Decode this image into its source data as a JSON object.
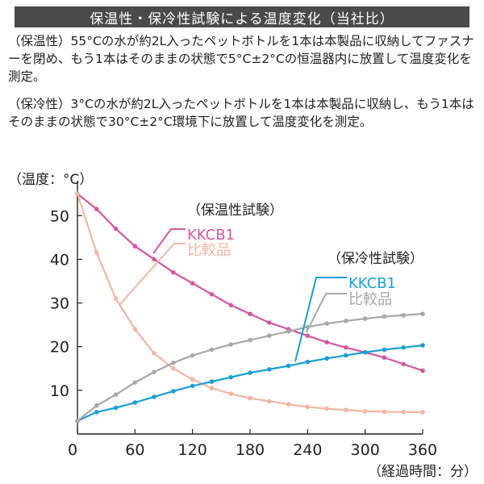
{
  "header": {
    "title": "保温性・保冷性試験による温度変化（当社比）"
  },
  "descriptions": [
    "（保温性）55°Cの水が約2L入ったペットボトルを1本は本製品に収納してファスナーを閉め、もう1本はそのままの状態で5°C±2°Cの恒温器内に放置して温度変化を測定。",
    "（保冷性）3°Cの水が約2L入ったペットボトルを1本は本製品に収納し、もう1本はそのままの状態で30°C±2°C環境下に放置して温度変化を測定。"
  ],
  "colors": {
    "kkcb1_warm": "#d4589e",
    "compare_warm": "#f0b7a3",
    "kkcb1_cold": "#1a9fd6",
    "compare_cold": "#a8a8a8",
    "title_bg": "#4a4a4a"
  },
  "chart_data": {
    "type": "line",
    "ylabel": "（温度：°C）",
    "xlabel": "（経過時間：分）",
    "xlim": [
      0,
      360
    ],
    "ylim": [
      0,
      58
    ],
    "xticks": [
      0,
      60,
      120,
      180,
      240,
      300,
      360
    ],
    "yticks": [
      10,
      20,
      30,
      40,
      50
    ],
    "grid": false,
    "groups": [
      {
        "label": "（保温性試験）",
        "legend_position": "upper-middle"
      },
      {
        "label": "（保冷性試験）",
        "legend_position": "middle-right"
      }
    ],
    "series": [
      {
        "name": "KKCB1",
        "group": "（保温性試験）",
        "color": "#d4589e",
        "x": [
          0,
          20,
          40,
          60,
          80,
          100,
          120,
          140,
          160,
          180,
          200,
          220,
          240,
          260,
          280,
          300,
          320,
          340,
          360
        ],
        "y": [
          55,
          51.5,
          47,
          43,
          40,
          37,
          34.5,
          32,
          29.5,
          27.5,
          25.5,
          24,
          22.5,
          21,
          19.8,
          18.7,
          17.5,
          16,
          14.5
        ]
      },
      {
        "name": "比較品",
        "group": "（保温性試験）",
        "color": "#f0b7a3",
        "x": [
          0,
          20,
          40,
          60,
          80,
          100,
          120,
          140,
          160,
          180,
          200,
          220,
          240,
          260,
          280,
          300,
          320,
          340,
          360
        ],
        "y": [
          55,
          41.5,
          31,
          24,
          18.5,
          15,
          12.5,
          10.5,
          9.2,
          8.2,
          7.5,
          6.8,
          6.2,
          5.8,
          5.5,
          5.2,
          5.1,
          5.0,
          5.0
        ]
      },
      {
        "name": "KKCB1",
        "group": "（保冷性試験）",
        "color": "#1a9fd6",
        "x": [
          0,
          20,
          40,
          60,
          80,
          100,
          120,
          140,
          160,
          180,
          200,
          220,
          240,
          260,
          280,
          300,
          320,
          340,
          360
        ],
        "y": [
          3,
          5,
          6,
          7.2,
          8.5,
          9.8,
          11,
          12,
          13,
          14,
          14.8,
          15.6,
          16.5,
          17.3,
          18,
          18.7,
          19.3,
          19.8,
          20.3
        ]
      },
      {
        "name": "比較品",
        "group": "（保冷性試験）",
        "color": "#a8a8a8",
        "x": [
          0,
          20,
          40,
          60,
          80,
          100,
          120,
          140,
          160,
          180,
          200,
          220,
          240,
          260,
          280,
          300,
          320,
          340,
          360
        ],
        "y": [
          3,
          6.5,
          9,
          11.8,
          14.2,
          16.3,
          18,
          19.3,
          20.5,
          21.5,
          22.5,
          23.5,
          24.5,
          25.3,
          25.9,
          26.4,
          26.9,
          27.2,
          27.5
        ]
      }
    ]
  }
}
